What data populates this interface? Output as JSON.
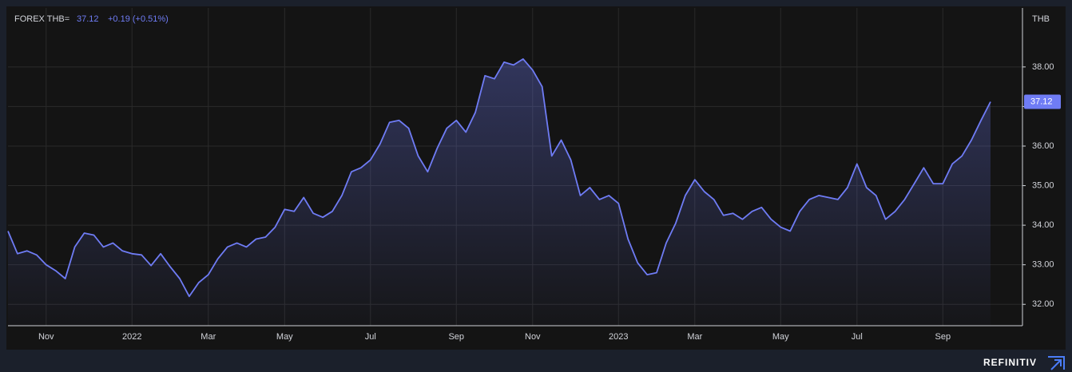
{
  "chart_data": {
    "type": "line",
    "title": "FOREX THB=",
    "change_label": "+0.19 (+0.51%)",
    "y_label": "THB",
    "brand": "REFINITIV",
    "categories": [
      null,
      null,
      null,
      null,
      "Nov",
      null,
      null,
      null,
      null,
      null,
      null,
      null,
      null,
      "2022",
      null,
      null,
      null,
      null,
      null,
      null,
      null,
      "Mar",
      null,
      null,
      null,
      null,
      null,
      null,
      null,
      "May",
      null,
      null,
      null,
      null,
      null,
      null,
      null,
      null,
      "Jul",
      null,
      null,
      null,
      null,
      null,
      null,
      null,
      null,
      "Sep",
      null,
      null,
      null,
      null,
      null,
      null,
      null,
      "Nov",
      null,
      null,
      null,
      null,
      null,
      null,
      null,
      null,
      "2023",
      null,
      null,
      null,
      null,
      null,
      null,
      null,
      "Mar",
      null,
      null,
      null,
      null,
      null,
      null,
      null,
      null,
      "May",
      null,
      null,
      null,
      null,
      null,
      null,
      null,
      "Jul",
      null,
      null,
      null,
      null,
      null,
      null,
      null,
      null,
      "Sep",
      null,
      null,
      null,
      null,
      null
    ],
    "series": [
      {
        "name": "FOREX THB=",
        "color": "#6f7cf5",
        "values": [
          33.85,
          33.28,
          33.35,
          33.25,
          33.0,
          32.85,
          32.65,
          33.45,
          33.8,
          33.75,
          33.45,
          33.55,
          33.35,
          33.28,
          33.25,
          32.98,
          33.28,
          32.95,
          32.65,
          32.2,
          32.55,
          32.75,
          33.15,
          33.45,
          33.55,
          33.45,
          33.65,
          33.7,
          33.95,
          34.4,
          34.35,
          34.7,
          34.3,
          34.2,
          34.35,
          34.75,
          35.35,
          35.45,
          35.65,
          36.05,
          36.6,
          36.65,
          36.45,
          35.75,
          35.35,
          35.95,
          36.45,
          36.65,
          36.35,
          36.85,
          37.78,
          37.7,
          38.12,
          38.05,
          38.2,
          37.92,
          37.5,
          35.75,
          36.15,
          35.65,
          34.75,
          34.95,
          34.65,
          34.75,
          34.55,
          33.65,
          33.05,
          32.75,
          32.8,
          33.55,
          34.05,
          34.75,
          35.15,
          34.85,
          34.65,
          34.25,
          34.3,
          34.15,
          34.35,
          34.45,
          34.15,
          33.95,
          33.85,
          34.35,
          34.65,
          34.75,
          34.7,
          34.65,
          34.95,
          35.55,
          34.95,
          34.75,
          34.15,
          34.35,
          34.65,
          35.05,
          35.45,
          35.05,
          35.05,
          35.55,
          35.75,
          36.15,
          36.65,
          37.12
        ]
      }
    ],
    "ylim": [
      31.46,
      39.49
    ],
    "yticks": [
      {
        "value": 32,
        "label": "32.00"
      },
      {
        "value": 33,
        "label": "33.00"
      },
      {
        "value": 34,
        "label": "34.00"
      },
      {
        "value": 35,
        "label": "35.00"
      },
      {
        "value": 36,
        "label": "36.00"
      },
      {
        "value": 37,
        "label": "37.00"
      },
      {
        "value": 38,
        "label": "38.00"
      }
    ],
    "grid": true
  }
}
